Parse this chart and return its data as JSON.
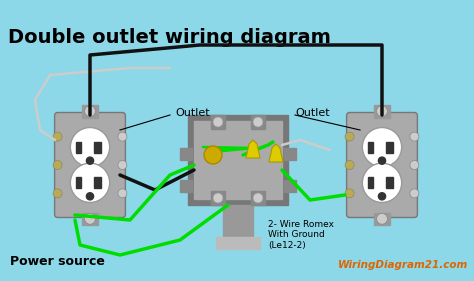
{
  "title": "Double outlet wiring diagram",
  "bg_color": "#8dd8e8",
  "outlet_color": "#ffffff",
  "outlet_border_color": "#999999",
  "box_color": "#aaaaaa",
  "wire_black": "#111111",
  "wire_green": "#00dd00",
  "wire_white": "#cccccc",
  "wire_yellow": "#ddcc00",
  "label_left": "Outlet",
  "label_right": "Outlet",
  "label_power": "Power source",
  "label_romex": "2- Wire Romex\nWith Ground\n(Le12-2)",
  "brand": "WiringDiagram21.com",
  "brand_color": "#dd6600"
}
